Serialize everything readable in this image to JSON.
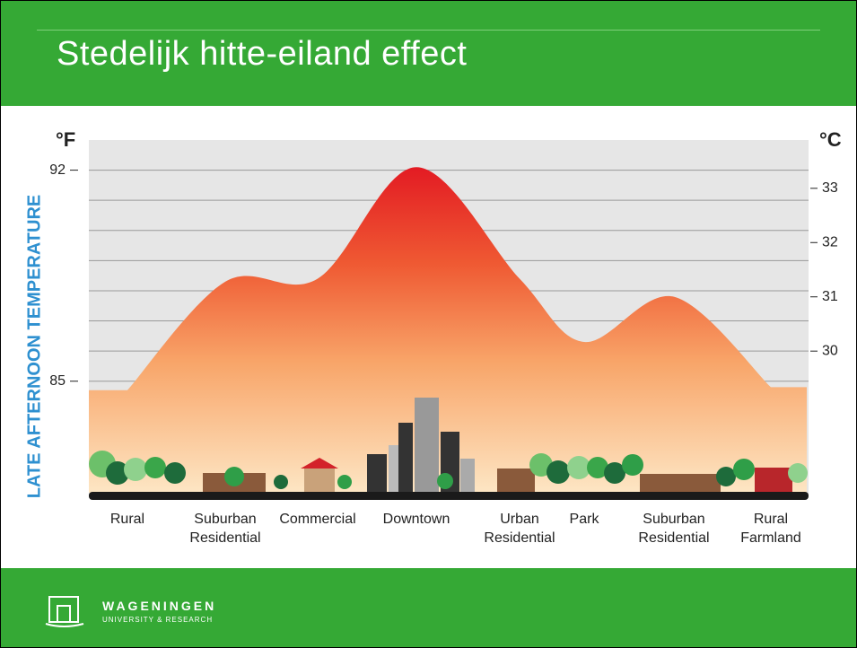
{
  "title": "Stedelijk hitte-eiland effect",
  "chart_data": {
    "type": "area",
    "y_label": "°F",
    "y2_label": "°C",
    "axis_title": "LATE AFTERNOON TEMPERATURE",
    "categories": [
      "Rural",
      "Suburban\nResidential",
      "Commercial",
      "Downtown",
      "Urban\nResidential",
      "Park",
      "Suburban\nResidential",
      "Rural\nFarmland"
    ],
    "values": [
      84.7,
      88.3,
      88.4,
      92.1,
      88.4,
      86.3,
      87.8,
      84.8
    ],
    "ylim": [
      81.3,
      93.0
    ],
    "yticks": [
      85,
      92
    ],
    "y2lim": [
      27.39,
      33.89
    ],
    "y2ticks": [
      30,
      31,
      32,
      33
    ],
    "grid": true
  },
  "footer": {
    "name": "WAGENINGEN",
    "sub": "UNIVERSITY & RESEARCH"
  }
}
